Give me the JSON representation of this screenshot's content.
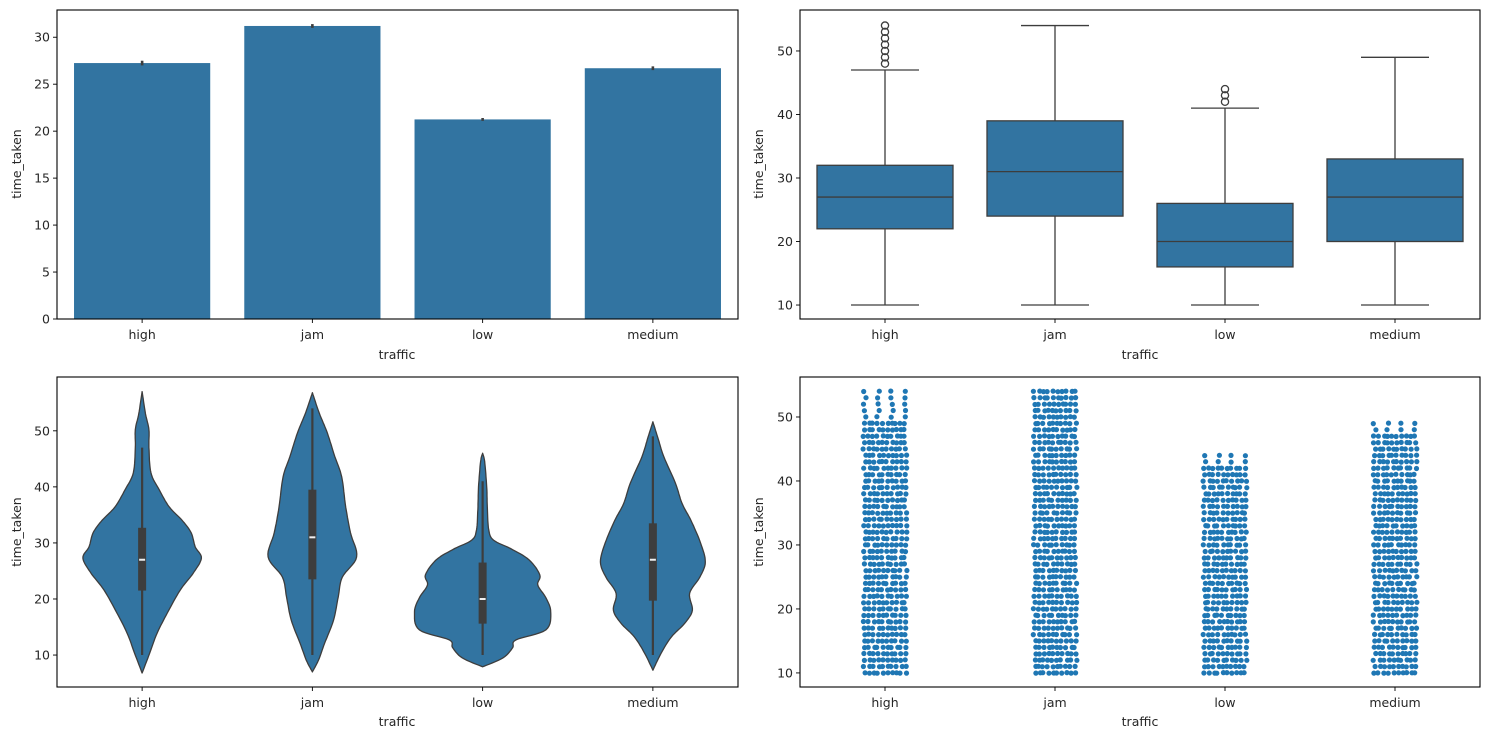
{
  "colors": {
    "bar": "#3274a1",
    "box": "#3274a1",
    "violin": "#3274a1",
    "strip": "#1f77b4",
    "line": "#3d3d3d",
    "median_mark": "#f0f0f0"
  },
  "chart_data": [
    {
      "type": "bar",
      "title": "",
      "xlabel": "traffic",
      "ylabel": "time_taken",
      "categories": [
        "high",
        "jam",
        "low",
        "medium"
      ],
      "values": [
        27.25,
        31.2,
        21.25,
        26.7
      ],
      "error_bars": [
        [
          27.0,
          27.5
        ],
        [
          31.0,
          31.4
        ],
        [
          21.1,
          21.4
        ],
        [
          26.5,
          26.9
        ]
      ],
      "ylim": [
        0,
        32.9
      ],
      "yticks": [
        0,
        5,
        10,
        15,
        20,
        25,
        30
      ],
      "ytick_labels": [
        "0",
        "5",
        "10",
        "15",
        "20",
        "25",
        "30"
      ],
      "grid": false
    },
    {
      "type": "box",
      "title": "",
      "xlabel": "traffic",
      "ylabel": "time_taken",
      "categories": [
        "high",
        "jam",
        "low",
        "medium"
      ],
      "boxes": [
        {
          "whisker_low": 10,
          "q1": 22,
          "median": 27,
          "q3": 32,
          "whisker_high": 47,
          "outliers": [
            48,
            49,
            50,
            51,
            52,
            53,
            54
          ]
        },
        {
          "whisker_low": 10,
          "q1": 24,
          "median": 31,
          "q3": 39,
          "whisker_high": 54,
          "outliers": []
        },
        {
          "whisker_low": 10,
          "q1": 16,
          "median": 20,
          "q3": 26,
          "whisker_high": 41,
          "outliers": [
            42,
            43,
            44
          ]
        },
        {
          "whisker_low": 10,
          "q1": 20,
          "median": 27,
          "q3": 33,
          "whisker_high": 49,
          "outliers": []
        }
      ],
      "ylim": [
        7.8,
        56.45
      ],
      "yticks": [
        10,
        20,
        30,
        40,
        50
      ],
      "ytick_labels": [
        "10",
        "20",
        "30",
        "40",
        "50"
      ],
      "grid": false
    },
    {
      "type": "violin",
      "title": "",
      "xlabel": "traffic",
      "ylabel": "time_taken",
      "categories": [
        "high",
        "jam",
        "low",
        "medium"
      ],
      "density": [
        [
          [
            6.8,
            0
          ],
          [
            10.3,
            0.11
          ],
          [
            13.9,
            0.22
          ],
          [
            17.5,
            0.37
          ],
          [
            21.6,
            0.56
          ],
          [
            24.6,
            0.75
          ],
          [
            27.3,
            0.87
          ],
          [
            29.3,
            0.78
          ],
          [
            31.8,
            0.72
          ],
          [
            34,
            0.59
          ],
          [
            36.4,
            0.4
          ],
          [
            39.5,
            0.25
          ],
          [
            42.5,
            0.13
          ],
          [
            47,
            0.1
          ],
          [
            50.2,
            0.1
          ],
          [
            53,
            0.05
          ],
          [
            57,
            0
          ]
        ],
        [
          [
            7,
            0
          ],
          [
            9.1,
            0.09
          ],
          [
            12.1,
            0.18
          ],
          [
            16.2,
            0.31
          ],
          [
            20.4,
            0.38
          ],
          [
            23.9,
            0.44
          ],
          [
            27.5,
            0.65
          ],
          [
            31.8,
            0.56
          ],
          [
            36.4,
            0.49
          ],
          [
            41.8,
            0.43
          ],
          [
            45.4,
            0.33
          ],
          [
            49.6,
            0.22
          ],
          [
            53.2,
            0.1
          ],
          [
            56.8,
            0
          ]
        ],
        [
          [
            7.9,
            0
          ],
          [
            9.5,
            0.3
          ],
          [
            11.3,
            0.44
          ],
          [
            12.7,
            0.49
          ],
          [
            14.5,
            0.93
          ],
          [
            17.7,
            1.0
          ],
          [
            20.2,
            0.93
          ],
          [
            22.5,
            0.81
          ],
          [
            24.3,
            0.84
          ],
          [
            27,
            0.68
          ],
          [
            29,
            0.41
          ],
          [
            30.5,
            0.16
          ],
          [
            32.3,
            0.09
          ],
          [
            36,
            0.07
          ],
          [
            40,
            0.06
          ],
          [
            44.5,
            0.03
          ],
          [
            46,
            0
          ]
        ],
        [
          [
            7.3,
            0
          ],
          [
            10.3,
            0.12
          ],
          [
            13.2,
            0.27
          ],
          [
            15.7,
            0.47
          ],
          [
            18,
            0.58
          ],
          [
            21,
            0.54
          ],
          [
            23.9,
            0.69
          ],
          [
            26.6,
            0.77
          ],
          [
            30,
            0.7
          ],
          [
            34,
            0.56
          ],
          [
            37,
            0.43
          ],
          [
            40.7,
            0.33
          ],
          [
            45.4,
            0.16
          ],
          [
            48.9,
            0.07
          ],
          [
            51.6,
            0
          ]
        ]
      ],
      "inner_box": [
        {
          "whisker_low": 10,
          "q1": 21.5,
          "median": 27,
          "q3": 32.7,
          "whisker_high": 47
        },
        {
          "whisker_low": 10,
          "q1": 23.5,
          "median": 31,
          "q3": 39.5,
          "whisker_high": 54
        },
        {
          "whisker_low": 10,
          "q1": 15.6,
          "median": 20,
          "q3": 26.5,
          "whisker_high": 41
        },
        {
          "whisker_low": 10,
          "q1": 19.7,
          "median": 27,
          "q3": 33.5,
          "whisker_high": 49
        }
      ],
      "ylim": [
        4.3,
        59.6
      ],
      "yticks": [
        10,
        20,
        30,
        40,
        50
      ],
      "ytick_labels": [
        "10",
        "20",
        "30",
        "40",
        "50"
      ],
      "grid": false
    },
    {
      "type": "scatter",
      "subtype": "strip",
      "title": "",
      "xlabel": "traffic",
      "ylabel": "time_taken",
      "categories": [
        "high",
        "jam",
        "low",
        "medium"
      ],
      "value_ranges": [
        [
          10,
          54
        ],
        [
          10,
          54
        ],
        [
          10,
          44
        ],
        [
          10,
          49
        ]
      ],
      "sparse_above": [
        49,
        null,
        42,
        47
      ],
      "ylim": [
        7.8,
        56.25
      ],
      "yticks": [
        10,
        20,
        30,
        40,
        50
      ],
      "ytick_labels": [
        "10",
        "20",
        "30",
        "40",
        "50"
      ],
      "grid": false
    }
  ]
}
